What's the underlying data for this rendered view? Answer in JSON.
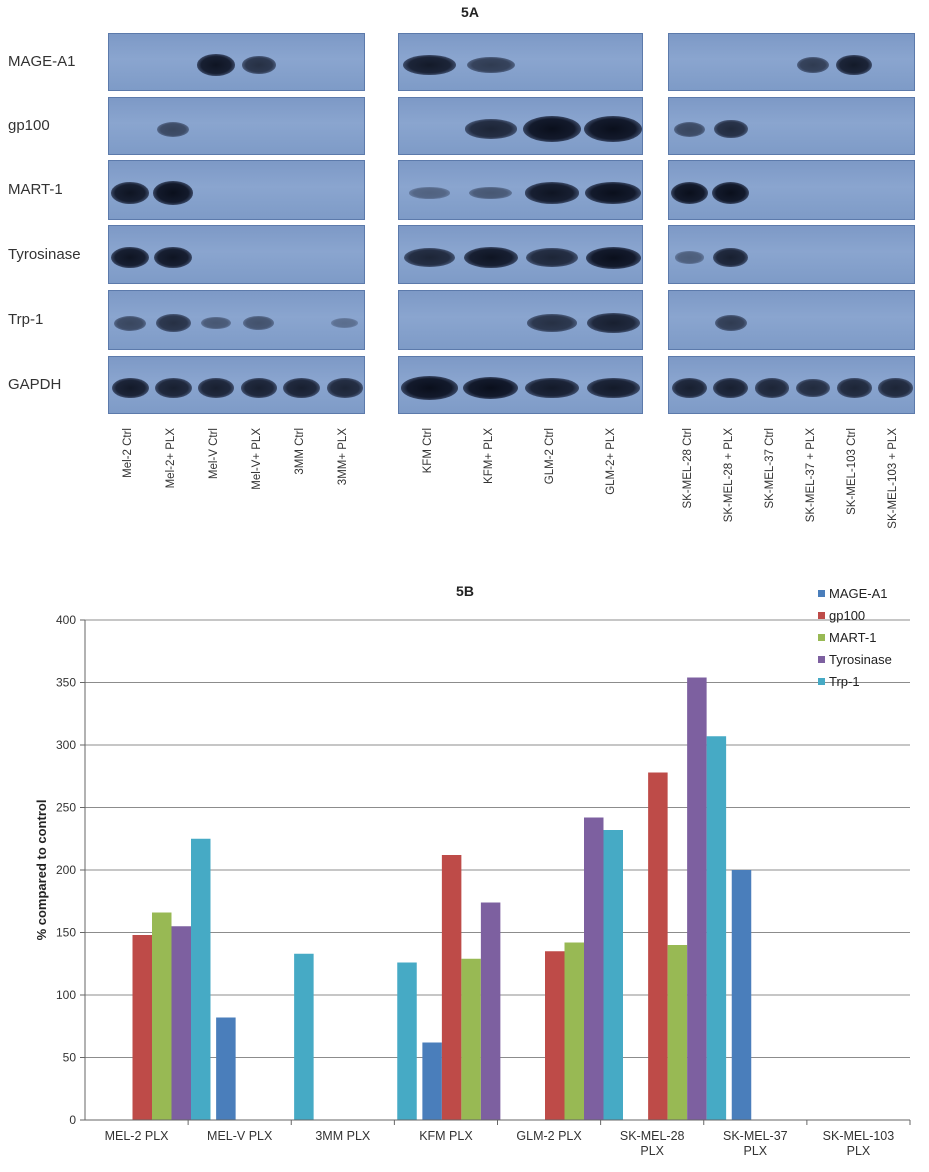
{
  "panel_a": {
    "title": "5A",
    "rows": [
      "MAGE-A1",
      "gp100",
      "MART-1",
      "Tyrosinase",
      "Trp-1",
      "GAPDH"
    ],
    "groups": [
      {
        "lanes": [
          "Mel-2 Ctrl",
          "Mel-2+ PLX",
          "Mel-V Ctrl",
          "Mel-V+ PLX",
          "3MM Ctrl",
          "3MM+ PLX"
        ]
      },
      {
        "lanes": [
          "KFM Ctrl",
          "KFM+ PLX",
          "GLM-2 Ctrl",
          "GLM-2+ PLX"
        ]
      },
      {
        "lanes": [
          "SK-MEL-28 Ctrl",
          "SK-MEL-28 + PLX",
          "SK-MEL-37 Ctrl",
          "SK-MEL-37 + PLX",
          "SK-MEL-103 Ctrl",
          "SK-MEL-103 + PLX"
        ]
      }
    ]
  },
  "chart_data": {
    "type": "bar",
    "title": "5B",
    "xlabel": "",
    "ylabel": "% compared to control",
    "ylim": [
      0,
      400
    ],
    "yticks": [
      0,
      50,
      100,
      150,
      200,
      250,
      300,
      350,
      400
    ],
    "grid": true,
    "legend_position": "top-right",
    "categories": [
      [
        "MEL-2 PLX"
      ],
      [
        "MEL-V PLX"
      ],
      [
        "3MM PLX"
      ],
      [
        "KFM PLX"
      ],
      [
        "GLM-2 PLX"
      ],
      [
        "SK-MEL-28",
        "PLX"
      ],
      [
        "SK-MEL-37",
        "PLX"
      ],
      [
        "SK-MEL-103",
        "PLX"
      ]
    ],
    "series": [
      {
        "name": "MAGE-A1",
        "color": "#4a7ebb",
        "values": [
          0,
          82,
          0,
          62,
          0,
          0,
          200,
          0
        ]
      },
      {
        "name": "gp100",
        "color": "#be4b48",
        "values": [
          148,
          0,
          0,
          212,
          135,
          278,
          0,
          0
        ]
      },
      {
        "name": "MART-1",
        "color": "#98b954",
        "values": [
          166,
          0,
          0,
          129,
          142,
          140,
          0,
          0
        ]
      },
      {
        "name": "Tyrosinase",
        "color": "#7d60a0",
        "values": [
          155,
          0,
          0,
          174,
          242,
          354,
          0,
          0
        ]
      },
      {
        "name": "Trp-1",
        "color": "#46aac5",
        "values": [
          225,
          133,
          126,
          0,
          232,
          307,
          0,
          0
        ]
      }
    ]
  }
}
